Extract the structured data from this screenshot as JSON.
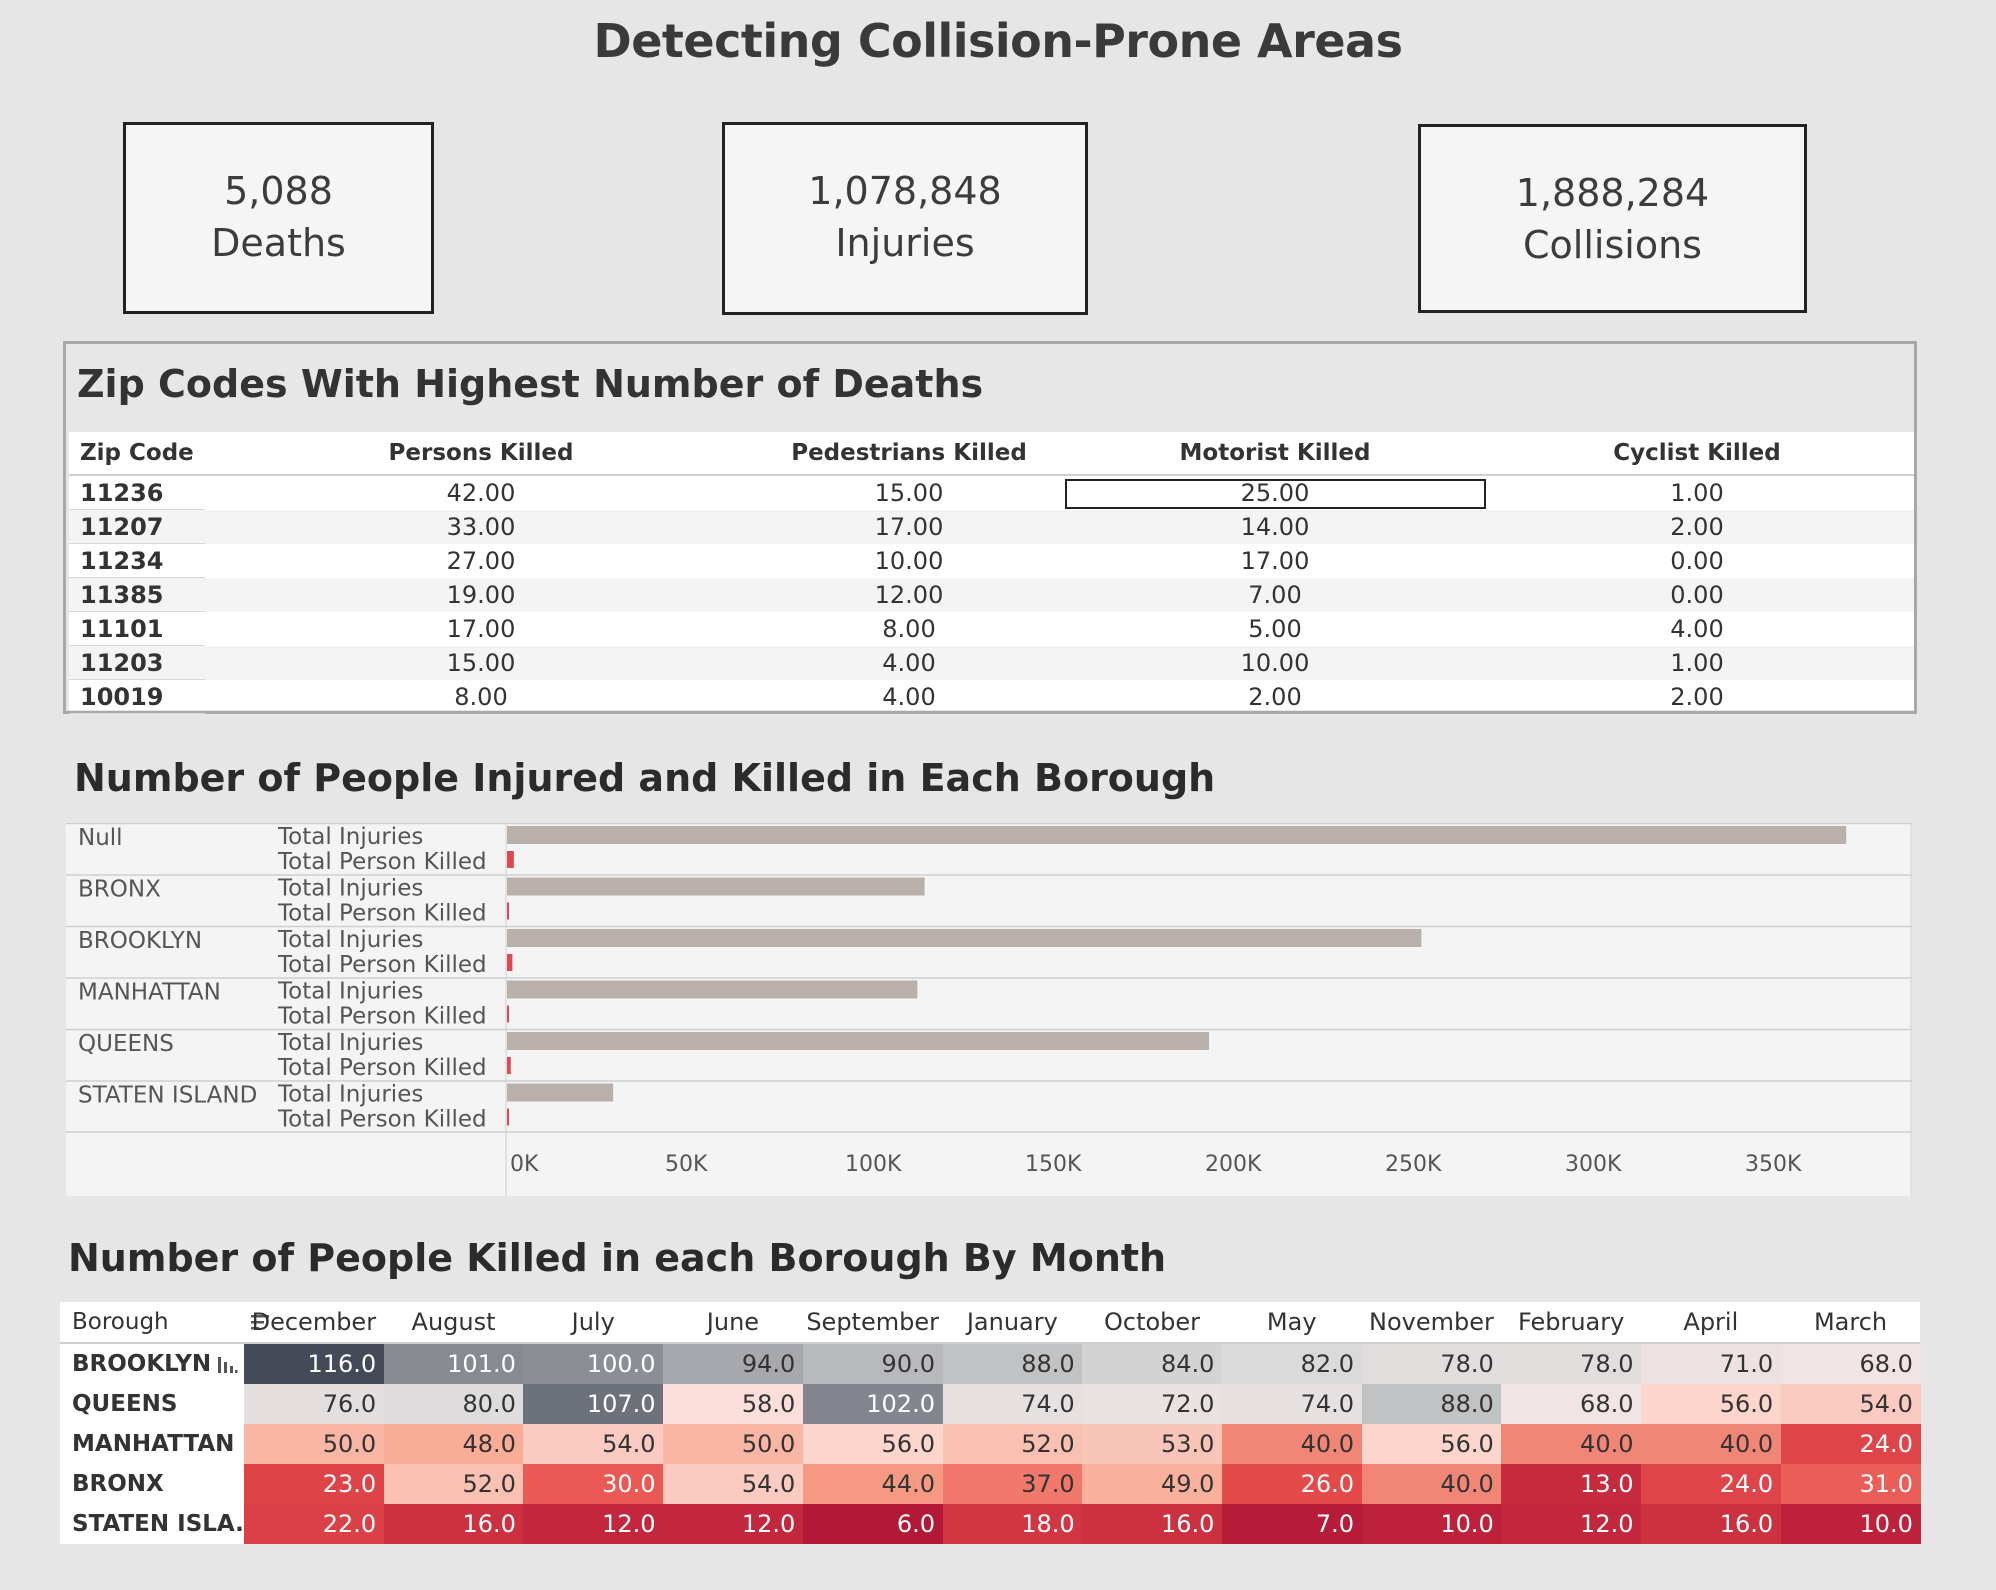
{
  "title": "Detecting Collision-Prone Areas",
  "kpis": [
    {
      "value": "5,088",
      "label": "Deaths"
    },
    {
      "value": "1,078,848",
      "label": "Injuries"
    },
    {
      "value": "1,888,284",
      "label": "Collisions"
    }
  ],
  "zip_table": {
    "title": "Zip Codes With Highest Number of Deaths",
    "columns": [
      "Zip Code",
      "Persons Killed",
      "Pedestrians Killed",
      "Motorist Killed",
      "Cyclist Killed"
    ],
    "rows": [
      [
        "11236",
        "42.00",
        "15.00",
        "25.00",
        "1.00"
      ],
      [
        "11207",
        "33.00",
        "17.00",
        "14.00",
        "2.00"
      ],
      [
        "11234",
        "27.00",
        "10.00",
        "17.00",
        "0.00"
      ],
      [
        "11385",
        "19.00",
        "12.00",
        "7.00",
        "0.00"
      ],
      [
        "11101",
        "17.00",
        "8.00",
        "5.00",
        "4.00"
      ],
      [
        "11203",
        "15.00",
        "4.00",
        "10.00",
        "1.00"
      ],
      [
        "10019",
        "8.00",
        "4.00",
        "2.00",
        "2.00"
      ]
    ]
  },
  "chart_data": [
    {
      "type": "bar",
      "orientation": "horizontal",
      "title": "Number of People Injured and Killed in Each Borough",
      "categories": [
        "Null",
        "BRONX",
        "BROOKLYN",
        "MANHATTAN",
        "QUEENS",
        "STATEN ISLAND"
      ],
      "measures": [
        "Total Injuries",
        "Total Person Killed"
      ],
      "series": [
        {
          "name": "Total Injuries",
          "values": [
            372000,
            116000,
            254000,
            114000,
            195000,
            29500
          ]
        },
        {
          "name": "Total Person Killed",
          "values": [
            1900,
            480,
            1500,
            450,
            1050,
            150
          ]
        }
      ],
      "xlim": [
        0,
        390000
      ],
      "x_ticks": [
        "0K",
        "50K",
        "100K",
        "150K",
        "200K",
        "250K",
        "300K",
        "350K"
      ],
      "colors": {
        "Total Injuries": "#b9b0ac",
        "Total Person Killed": "#e0484f"
      }
    },
    {
      "type": "heatmap",
      "title": "Number of People Killed in each Borough By Month",
      "row_header": "Borough",
      "columns": [
        "December",
        "August",
        "July",
        "June",
        "September",
        "January",
        "October",
        "May",
        "November",
        "February",
        "April",
        "March"
      ],
      "rows": [
        "BROOKLYN",
        "QUEENS",
        "MANHATTAN",
        "BRONX",
        "STATEN ISLA.."
      ],
      "values": [
        [
          116.0,
          101.0,
          100.0,
          94.0,
          90.0,
          88.0,
          84.0,
          82.0,
          78.0,
          78.0,
          71.0,
          68.0
        ],
        [
          76.0,
          80.0,
          107.0,
          58.0,
          102.0,
          74.0,
          72.0,
          74.0,
          88.0,
          68.0,
          56.0,
          54.0
        ],
        [
          50.0,
          48.0,
          54.0,
          50.0,
          56.0,
          52.0,
          53.0,
          40.0,
          56.0,
          40.0,
          40.0,
          24.0
        ],
        [
          23.0,
          52.0,
          30.0,
          54.0,
          44.0,
          37.0,
          49.0,
          26.0,
          40.0,
          13.0,
          24.0,
          31.0
        ],
        [
          22.0,
          16.0,
          12.0,
          12.0,
          6.0,
          18.0,
          16.0,
          7.0,
          10.0,
          12.0,
          16.0,
          10.0
        ]
      ],
      "color_range": {
        "low": "#b41837",
        "mid": "#fde9e9",
        "high": "#444a57"
      }
    }
  ]
}
